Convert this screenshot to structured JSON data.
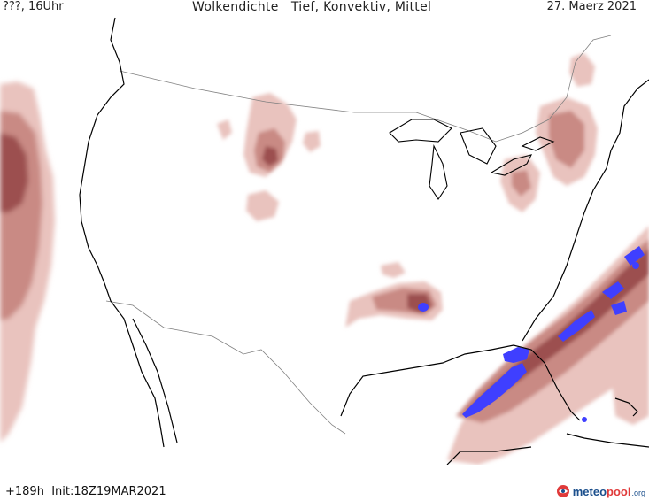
{
  "header": {
    "left": "???, 16Uhr",
    "title": "Wolkendichte   Tief, Konvektiv, Mittel",
    "date": "27. Maerz 2021"
  },
  "footer": {
    "run_info": "+189h  Init:18Z19MAR2021",
    "logo_main": "meteo",
    "logo_accent": "pool",
    "logo_tld": ".org"
  },
  "colors": {
    "cloud_light": "#e9c3be",
    "cloud_mid": "#c98a84",
    "cloud_dark": "#9c4f4f",
    "convective": "#3f3fff",
    "coastline": "#000000",
    "borders": "#808080"
  }
}
